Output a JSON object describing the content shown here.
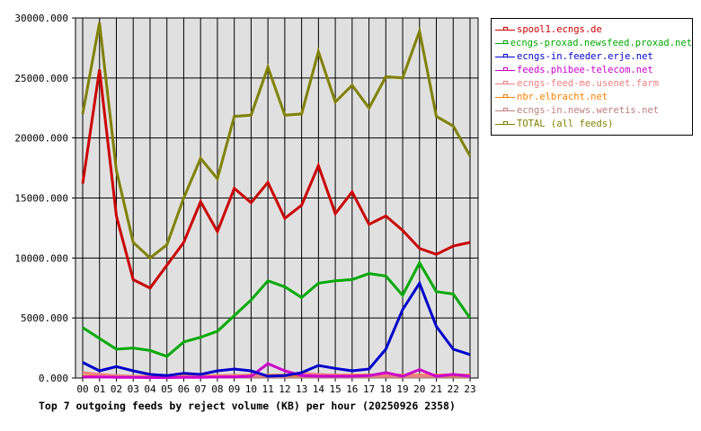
{
  "chart_data": {
    "type": "line",
    "title": "Top 7 outgoing feeds by reject volume (KB) per hour (20250926 2358)",
    "xlabel": "",
    "ylabel": "",
    "ylim": [
      0,
      30000
    ],
    "grid": true,
    "legend_position": "right",
    "y_ticks": [
      "0.000",
      "5000.000",
      "10000.000",
      "15000.000",
      "20000.000",
      "25000.000",
      "30000.000"
    ],
    "categories": [
      "00",
      "01",
      "02",
      "03",
      "04",
      "05",
      "06",
      "07",
      "08",
      "09",
      "10",
      "11",
      "12",
      "13",
      "14",
      "15",
      "16",
      "17",
      "18",
      "19",
      "20",
      "21",
      "22",
      "23"
    ],
    "series": [
      {
        "name": "spool1.ecngs.de",
        "color": "#cc0000",
        "values": [
          16200,
          25700,
          13500,
          8200,
          7500,
          9400,
          11300,
          14700,
          12200,
          15800,
          14600,
          16300,
          13300,
          14400,
          17700,
          13700,
          15500,
          12800,
          13500,
          12300,
          10800,
          10300,
          11000,
          11300
        ]
      },
      {
        "name": "ecngs-proxad.newsfeed.proxad.net",
        "color": "#00aa00",
        "values": [
          4200,
          3300,
          2400,
          2500,
          2300,
          1800,
          3000,
          3400,
          3900,
          5200,
          6500,
          8100,
          7600,
          6700,
          7900,
          8100,
          8200,
          8700,
          8500,
          6900,
          9600,
          7200,
          7000,
          5000
        ]
      },
      {
        "name": "ecngs-in.feeder.erje.net",
        "color": "#0000cc",
        "values": [
          1300,
          600,
          950,
          600,
          300,
          200,
          400,
          300,
          600,
          750,
          600,
          150,
          200,
          450,
          1050,
          800,
          600,
          750,
          2400,
          5700,
          7900,
          4300,
          2400,
          1950
        ]
      },
      {
        "name": "feeds.phibee-telecom.net",
        "color": "#cc00cc",
        "values": [
          100,
          80,
          60,
          50,
          40,
          40,
          50,
          60,
          80,
          100,
          150,
          1200,
          600,
          200,
          150,
          150,
          150,
          200,
          450,
          150,
          700,
          150,
          300,
          150
        ]
      },
      {
        "name": "ecngs-feed-me.usenet.farm",
        "color": "#f08080",
        "values": [
          450,
          300,
          200,
          150,
          120,
          100,
          120,
          150,
          180,
          200,
          200,
          200,
          250,
          400,
          300,
          250,
          200,
          200,
          200,
          200,
          200,
          200,
          300,
          200
        ]
      },
      {
        "name": "nbr.elbracht.net",
        "color": "#ff8000",
        "values": [
          150,
          150,
          150,
          150,
          150,
          150,
          150,
          150,
          200,
          200,
          250,
          250,
          250,
          250,
          250,
          250,
          250,
          250,
          250,
          250,
          250,
          250,
          250,
          250
        ]
      },
      {
        "name": "ecngs-in.news.weretis.net",
        "color": "#c08080",
        "values": [
          80,
          80,
          80,
          80,
          80,
          80,
          80,
          80,
          80,
          80,
          80,
          80,
          80,
          80,
          80,
          80,
          80,
          80,
          80,
          80,
          80,
          80,
          80,
          80
        ]
      },
      {
        "name": "TOTAL (all feeds)",
        "color": "#808000",
        "values": [
          22000,
          29600,
          17300,
          11300,
          10000,
          11100,
          15000,
          18300,
          16600,
          21800,
          21900,
          25900,
          21900,
          22000,
          27200,
          23000,
          24400,
          22500,
          25100,
          25000,
          28900,
          21800,
          21000,
          18500
        ]
      }
    ]
  }
}
